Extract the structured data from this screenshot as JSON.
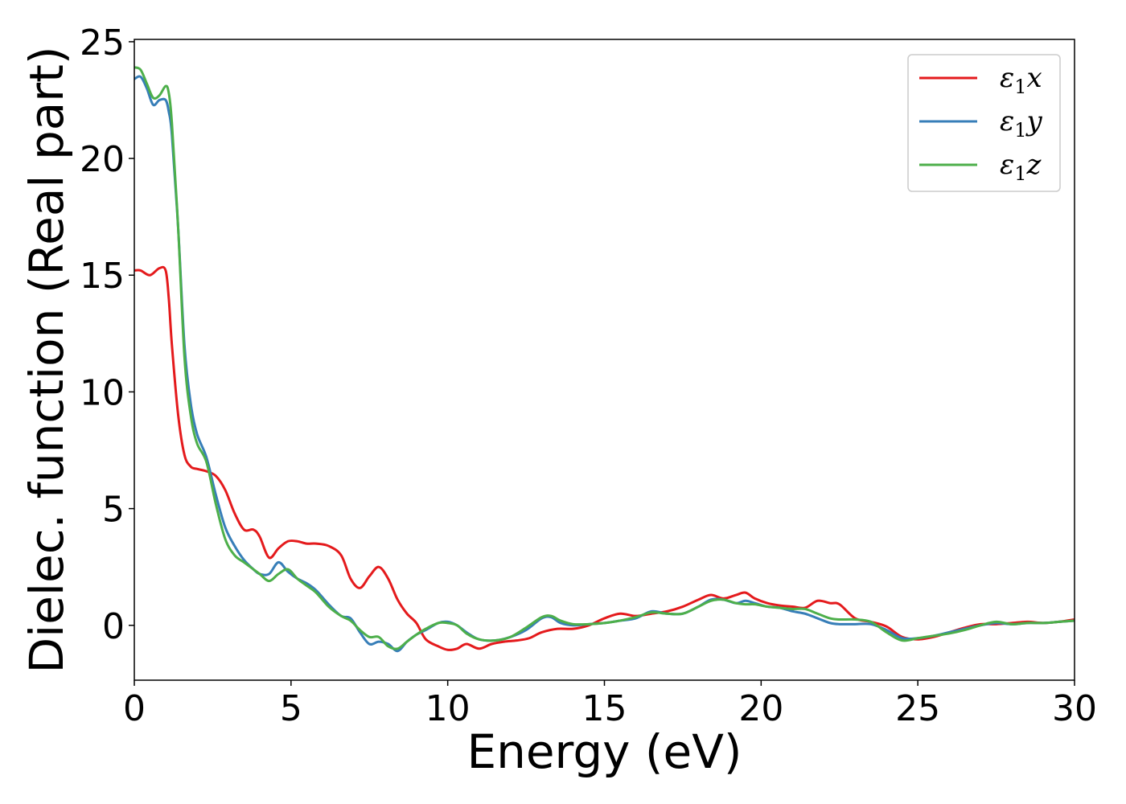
{
  "chart_data": {
    "type": "line",
    "title": "",
    "xlabel": "Energy (eV)",
    "ylabel": "Dielec. function (Real part)",
    "xlim": [
      0,
      30
    ],
    "ylim": [
      -2.35,
      25.1
    ],
    "xticks": [
      0,
      5,
      10,
      15,
      20,
      25,
      30
    ],
    "yticks": [
      0,
      5,
      10,
      15,
      20,
      25
    ],
    "grid": false,
    "legend_position": "top-right",
    "series": [
      {
        "name": "ε1x",
        "legend_symbol": "ε",
        "legend_sub": "1",
        "legend_var": "x",
        "color": "#e41a1c",
        "x": [
          0,
          0.2,
          0.5,
          0.8,
          1.0,
          1.1,
          1.2,
          1.4,
          1.6,
          1.8,
          2.0,
          2.3,
          2.6,
          2.9,
          3.2,
          3.5,
          3.8,
          4.0,
          4.3,
          4.6,
          4.9,
          5.2,
          5.5,
          5.8,
          6.2,
          6.6,
          6.9,
          7.2,
          7.5,
          7.8,
          8.1,
          8.4,
          8.7,
          9.0,
          9.3,
          9.7,
          10.0,
          10.3,
          10.6,
          11.0,
          11.4,
          11.8,
          12.2,
          12.6,
          13.0,
          13.5,
          14.0,
          14.5,
          15.0,
          15.5,
          16.0,
          16.5,
          17.0,
          17.5,
          18.0,
          18.4,
          18.8,
          19.2,
          19.5,
          19.8,
          20.2,
          20.6,
          21.0,
          21.4,
          21.8,
          22.2,
          22.5,
          23.0,
          23.5,
          24.0,
          24.5,
          25.0,
          25.5,
          26.0,
          26.5,
          27.0,
          27.5,
          28.0,
          28.5,
          29.0,
          29.5,
          30.0
        ],
        "y": [
          15.2,
          15.2,
          15.0,
          15.3,
          15.2,
          14.0,
          12.0,
          9.0,
          7.3,
          6.8,
          6.7,
          6.6,
          6.4,
          5.8,
          4.8,
          4.1,
          4.1,
          3.8,
          2.9,
          3.3,
          3.6,
          3.6,
          3.5,
          3.5,
          3.4,
          3.0,
          2.0,
          1.6,
          2.1,
          2.5,
          2.0,
          1.1,
          0.5,
          0.1,
          -0.6,
          -0.9,
          -1.05,
          -1.0,
          -0.8,
          -1.0,
          -0.8,
          -0.7,
          -0.65,
          -0.55,
          -0.3,
          -0.15,
          -0.15,
          0.0,
          0.3,
          0.5,
          0.4,
          0.5,
          0.6,
          0.8,
          1.1,
          1.3,
          1.15,
          1.3,
          1.4,
          1.15,
          0.95,
          0.85,
          0.8,
          0.75,
          1.05,
          0.95,
          0.9,
          0.3,
          0.15,
          -0.05,
          -0.5,
          -0.6,
          -0.5,
          -0.3,
          -0.1,
          0.05,
          0.05,
          0.1,
          0.15,
          0.1,
          0.15,
          0.25
        ]
      },
      {
        "name": "ε1y",
        "legend_symbol": "ε",
        "legend_sub": "1",
        "legend_var": "y",
        "color": "#377eb8",
        "x": [
          0,
          0.2,
          0.4,
          0.6,
          0.8,
          1.0,
          1.1,
          1.2,
          1.4,
          1.6,
          1.8,
          2.0,
          2.3,
          2.6,
          2.9,
          3.2,
          3.5,
          3.8,
          4.0,
          4.3,
          4.6,
          4.9,
          5.2,
          5.5,
          5.8,
          6.2,
          6.6,
          6.9,
          7.2,
          7.5,
          7.8,
          8.1,
          8.4,
          8.7,
          9.0,
          9.3,
          9.7,
          10.0,
          10.3,
          10.6,
          11.0,
          11.5,
          12.0,
          12.5,
          13.0,
          13.3,
          13.6,
          14.0,
          14.5,
          15.0,
          15.5,
          16.0,
          16.5,
          17.0,
          17.5,
          18.0,
          18.4,
          18.8,
          19.2,
          19.5,
          19.8,
          20.2,
          20.6,
          21.0,
          21.4,
          21.8,
          22.2,
          22.5,
          23.0,
          23.5,
          24.0,
          24.5,
          25.0,
          25.5,
          26.0,
          26.5,
          27.0,
          27.5,
          28.0,
          28.5,
          29.0,
          29.5,
          30.0
        ],
        "y": [
          23.4,
          23.5,
          23.0,
          22.3,
          22.5,
          22.5,
          22.0,
          21.0,
          17.0,
          12.0,
          9.5,
          8.2,
          7.2,
          5.6,
          4.2,
          3.4,
          2.8,
          2.4,
          2.2,
          2.2,
          2.7,
          2.3,
          2.0,
          1.8,
          1.5,
          0.9,
          0.4,
          0.3,
          -0.3,
          -0.8,
          -0.7,
          -0.8,
          -1.1,
          -0.7,
          -0.4,
          -0.2,
          0.1,
          0.15,
          0.0,
          -0.3,
          -0.6,
          -0.65,
          -0.5,
          -0.2,
          0.3,
          0.35,
          0.1,
          0.0,
          0.05,
          0.1,
          0.2,
          0.3,
          0.6,
          0.5,
          0.5,
          0.8,
          1.1,
          1.1,
          0.95,
          1.05,
          0.95,
          0.8,
          0.75,
          0.6,
          0.5,
          0.3,
          0.1,
          0.05,
          0.05,
          0.05,
          -0.2,
          -0.55,
          -0.55,
          -0.45,
          -0.3,
          -0.15,
          0.0,
          0.1,
          0.05,
          0.1,
          0.1,
          0.15,
          0.2
        ]
      },
      {
        "name": "ε1z",
        "legend_symbol": "ε",
        "legend_sub": "1",
        "legend_var": "z",
        "color": "#4daf4a",
        "x": [
          0,
          0.2,
          0.4,
          0.6,
          0.8,
          1.0,
          1.1,
          1.2,
          1.4,
          1.6,
          1.8,
          2.0,
          2.3,
          2.6,
          2.9,
          3.2,
          3.5,
          3.8,
          4.0,
          4.3,
          4.6,
          4.9,
          5.2,
          5.5,
          5.8,
          6.2,
          6.6,
          6.9,
          7.2,
          7.5,
          7.8,
          8.1,
          8.4,
          8.7,
          9.0,
          9.3,
          9.7,
          10.0,
          10.3,
          10.6,
          11.0,
          11.5,
          12.0,
          12.5,
          13.0,
          13.3,
          13.6,
          14.0,
          14.5,
          15.0,
          15.5,
          16.0,
          16.5,
          17.0,
          17.5,
          18.0,
          18.4,
          18.8,
          19.2,
          19.5,
          19.8,
          20.2,
          20.6,
          21.0,
          21.4,
          21.8,
          22.2,
          22.5,
          23.0,
          23.5,
          24.0,
          24.5,
          25.0,
          25.5,
          26.0,
          26.5,
          27.0,
          27.5,
          28.0,
          28.5,
          29.0,
          29.5,
          30.0
        ],
        "y": [
          23.9,
          23.8,
          23.2,
          22.6,
          22.7,
          23.1,
          22.8,
          21.5,
          17.0,
          11.5,
          9.0,
          7.8,
          7.0,
          5.2,
          3.7,
          3.0,
          2.7,
          2.4,
          2.2,
          1.9,
          2.2,
          2.4,
          2.0,
          1.7,
          1.4,
          0.8,
          0.4,
          0.2,
          -0.2,
          -0.5,
          -0.5,
          -0.9,
          -1.0,
          -0.7,
          -0.4,
          -0.15,
          0.1,
          0.1,
          0.0,
          -0.35,
          -0.6,
          -0.65,
          -0.5,
          -0.1,
          0.35,
          0.4,
          0.2,
          0.05,
          0.05,
          0.1,
          0.2,
          0.35,
          0.55,
          0.5,
          0.5,
          0.8,
          1.05,
          1.1,
          0.95,
          0.9,
          0.9,
          0.8,
          0.75,
          0.7,
          0.7,
          0.5,
          0.3,
          0.25,
          0.25,
          0.15,
          -0.3,
          -0.65,
          -0.55,
          -0.45,
          -0.35,
          -0.2,
          0.0,
          0.15,
          0.05,
          0.1,
          0.1,
          0.15,
          0.2
        ]
      }
    ]
  }
}
